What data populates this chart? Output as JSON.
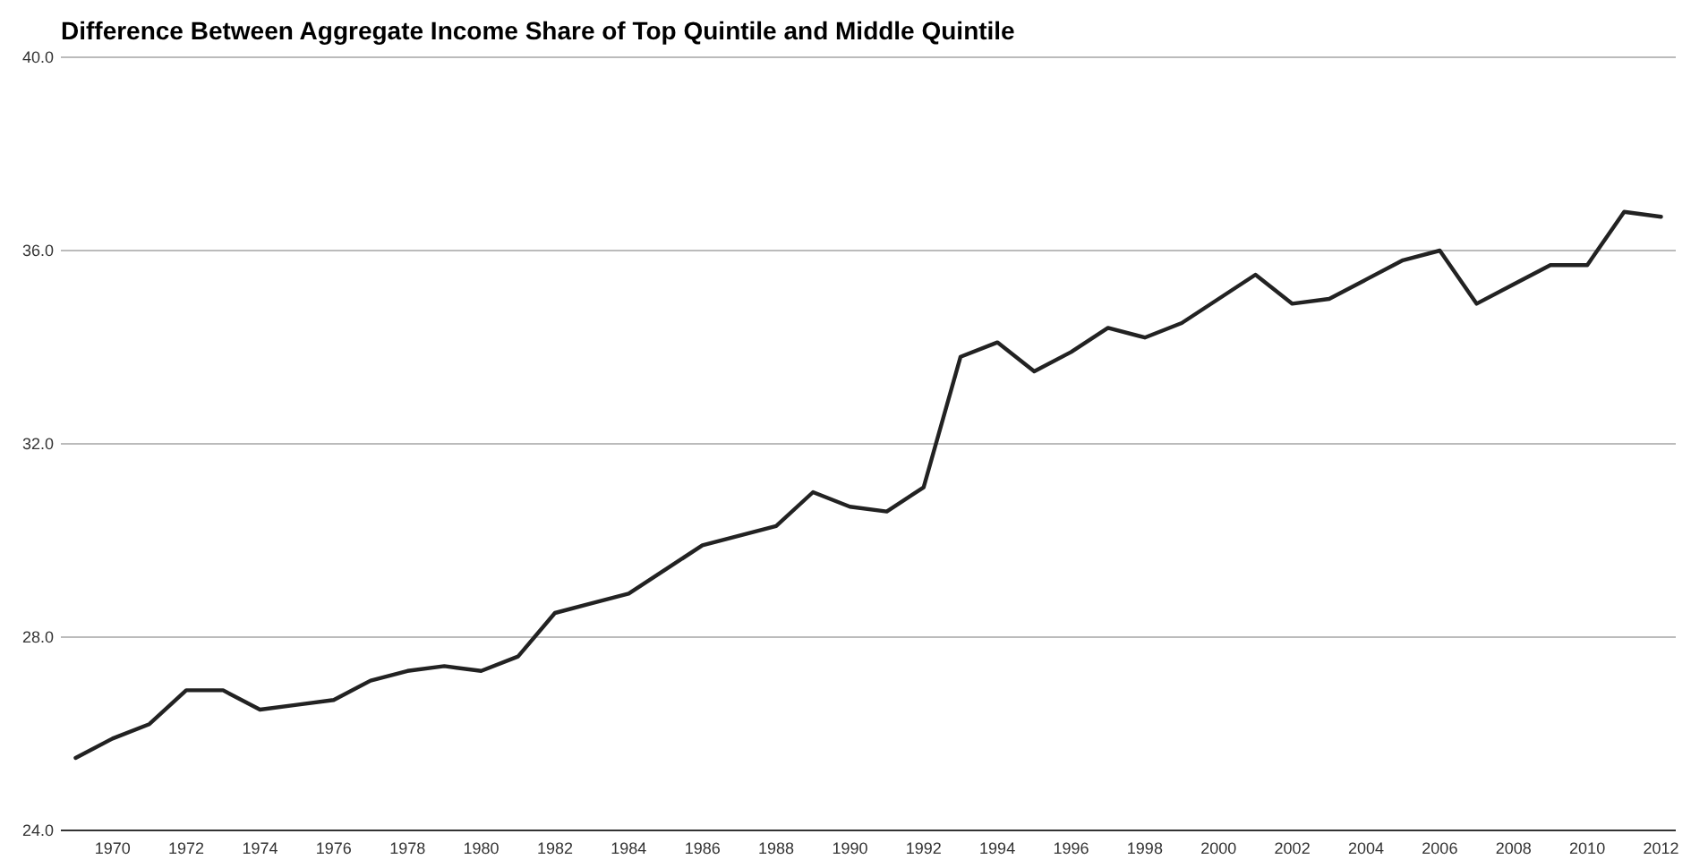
{
  "chart_data": {
    "type": "line",
    "title": "Difference Between Aggregate Income Share of Top Quintile and Middle Quintile",
    "x": [
      1969,
      1970,
      1971,
      1972,
      1973,
      1974,
      1975,
      1976,
      1977,
      1978,
      1979,
      1980,
      1981,
      1982,
      1983,
      1984,
      1985,
      1986,
      1987,
      1988,
      1989,
      1990,
      1991,
      1992,
      1993,
      1994,
      1995,
      1996,
      1997,
      1998,
      1999,
      2000,
      2001,
      2002,
      2003,
      2004,
      2005,
      2006,
      2007,
      2008,
      2009,
      2010,
      2011,
      2012
    ],
    "series": [
      {
        "color": "#222222",
        "values": [
          25.5,
          25.9,
          26.2,
          26.9,
          26.9,
          26.5,
          26.6,
          26.7,
          27.1,
          27.3,
          27.4,
          27.3,
          27.6,
          28.5,
          28.7,
          28.9,
          29.4,
          29.9,
          30.1,
          30.3,
          31.0,
          30.7,
          30.6,
          31.1,
          33.8,
          34.1,
          33.5,
          33.9,
          34.4,
          34.2,
          34.5,
          35.0,
          35.5,
          34.9,
          35.0,
          35.4,
          35.8,
          36.0,
          34.9,
          35.3,
          35.7,
          35.7,
          36.8,
          36.7
        ]
      }
    ],
    "xlim": [
      1968.6,
      2012.4
    ],
    "xticks": [
      1970,
      1972,
      1974,
      1976,
      1978,
      1980,
      1982,
      1984,
      1986,
      1988,
      1990,
      1992,
      1994,
      1996,
      1998,
      2000,
      2002,
      2004,
      2006,
      2008,
      2010,
      2012
    ],
    "ylim": [
      24,
      40
    ],
    "yticks": [
      {
        "value": 24,
        "label": "24.0"
      },
      {
        "value": 28,
        "label": "28.0"
      },
      {
        "value": 32,
        "label": "32.0"
      },
      {
        "value": 36,
        "label": "36.0"
      },
      {
        "value": 40,
        "label": "40.0"
      }
    ],
    "grid": "y",
    "marker": "none",
    "line_style": "solid"
  }
}
